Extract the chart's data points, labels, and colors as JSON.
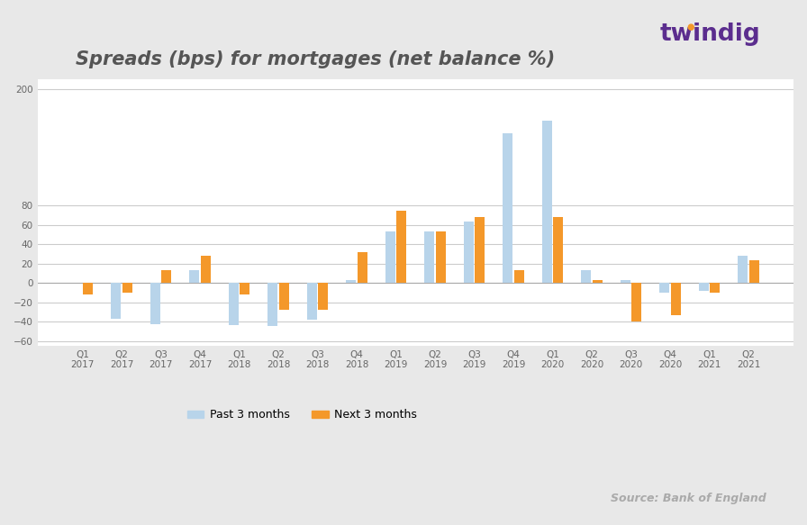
{
  "title": "Spreads (bps) for mortgages (net balance %)",
  "categories": [
    "Q1\n2017",
    "Q2\n2017",
    "Q3\n2017",
    "Q4\n2017",
    "Q1\n2018",
    "Q2\n2018",
    "Q3\n2018",
    "Q4\n2018",
    "Q1\n2019",
    "Q2\n2019",
    "Q3\n2019",
    "Q4\n2019",
    "Q1\n2020",
    "Q2\n2020",
    "Q3\n2020",
    "Q4\n2020",
    "Q1\n2021",
    "Q2\n2021"
  ],
  "past_3months": [
    0,
    -37,
    -43,
    13,
    -44,
    -45,
    -38,
    3,
    53,
    53,
    63,
    155,
    168,
    13,
    3,
    -10,
    -8,
    28
  ],
  "next_3months": [
    -12,
    -10,
    13,
    28,
    -12,
    -28,
    -28,
    32,
    75,
    53,
    68,
    13,
    68,
    3,
    -40,
    -33,
    -10,
    23
  ],
  "bar_color_past": "#b8d4ea",
  "bar_color_next": "#f4982a",
  "ylim_min": -60,
  "ylim_max": 200,
  "ytick_values": [
    200,
    80,
    60,
    40,
    20,
    0,
    -20,
    -40,
    -60
  ],
  "legend_past": "Past 3 months",
  "legend_next": "Next 3 months",
  "source_text": "Source: Bank of England",
  "fig_bg": "#e8e8e8",
  "plot_bg": "#ffffff",
  "grid_color": "#cccccc",
  "title_color": "#555555",
  "title_fontsize": 15,
  "tick_fontsize": 7.5,
  "bar_width": 0.25,
  "twindig_color": "#5b2d8e"
}
